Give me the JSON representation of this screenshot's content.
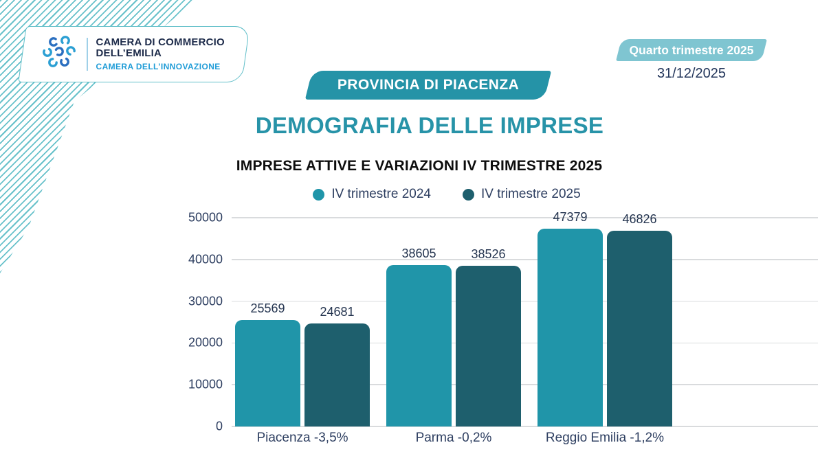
{
  "header": {
    "logo": {
      "line1": "CAMERA DI COMMERCIO",
      "line2": "DELL’EMILIA",
      "subtitle": "CAMERA DELL’INNOVAZIONE"
    },
    "period_badge": "Quarto trimestre 2025",
    "date": "31/12/2025",
    "province_banner": "PROVINCIA DI PIACENZA",
    "page_title": "DEMOGRAFIA DELLE IMPRESE"
  },
  "colors": {
    "series_2024": "#2095a9",
    "series_2025": "#1e5f6d",
    "badge_teal": "#7fc5d1",
    "banner_teal": "#2593a7",
    "title_teal": "#2793a8",
    "navy_text": "#2d3e60",
    "innovation_blue": "#1f9cd7",
    "stripe_teal": "#67c1ca",
    "gridline_gray": "#d9dbdd"
  },
  "chart_data": {
    "type": "bar",
    "title": "IMPRESE ATTIVE E VARIAZIONI IV TRIMESTRE 2025",
    "categories": [
      "Piacenza -3,5%",
      "Parma -0,2%",
      "Reggio Emilia -1,2%"
    ],
    "series": [
      {
        "name": "IV trimestre 2024",
        "color": "#2095a9",
        "values": [
          25569,
          38605,
          47379
        ]
      },
      {
        "name": "IV trimestre 2025",
        "color": "#1e5f6d",
        "values": [
          24681,
          38526,
          46826
        ]
      }
    ],
    "xlabel": "",
    "ylabel": "",
    "ylim": [
      0,
      50000
    ],
    "ytick_step": 10000,
    "grid": true,
    "legend_position": "top",
    "bar_value_labels": true
  }
}
